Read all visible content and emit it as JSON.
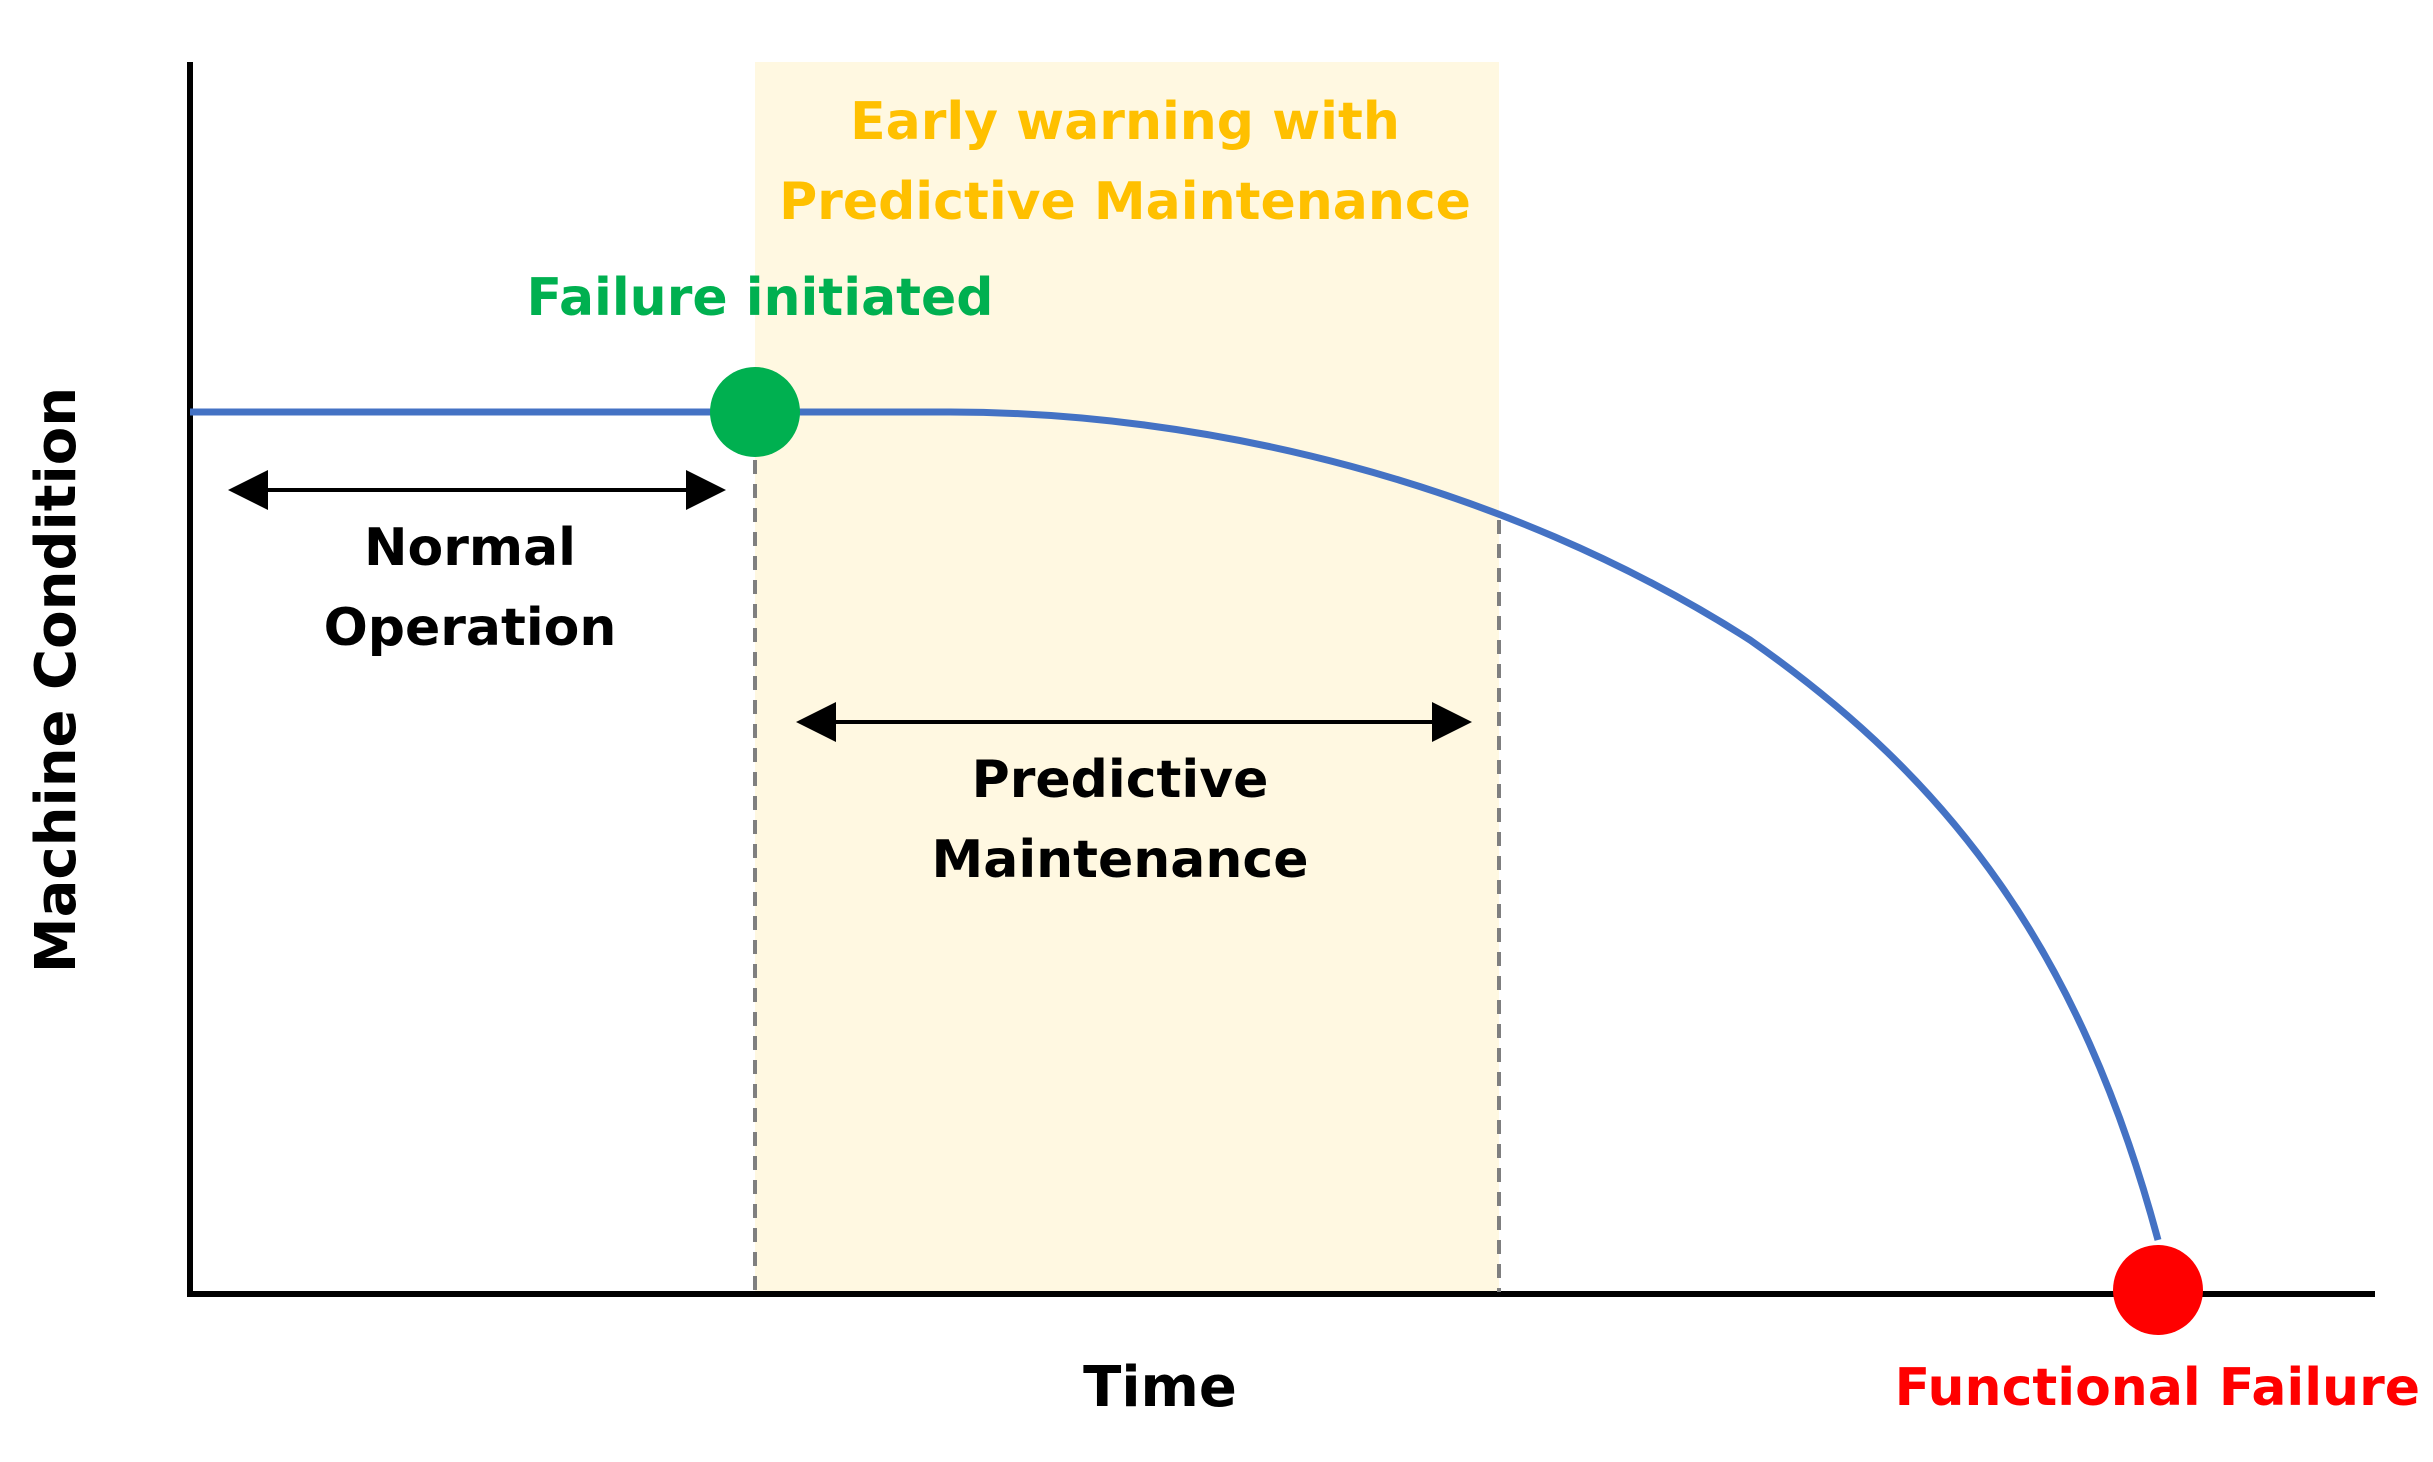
{
  "labels": {
    "early_warning_line1": "Early warning with",
    "early_warning_line2": "Predictive Maintenance",
    "failure_initiated": "Failure initiated",
    "normal_line1": "Normal",
    "normal_line2": "Operation",
    "predictive_line1": "Predictive",
    "predictive_line2": "Maintenance",
    "x_axis": "Time",
    "y_axis": "Machine Condition",
    "functional_failure": "Functional Failure"
  },
  "colors": {
    "curve": "#4472C4",
    "failure_initiated": "#00B050",
    "functional_failure": "#FF0000",
    "warning_text": "#FFC000",
    "warning_band": "#FFF8E1",
    "axis": "#000000",
    "dashed_line": "#7F7F7F"
  }
}
